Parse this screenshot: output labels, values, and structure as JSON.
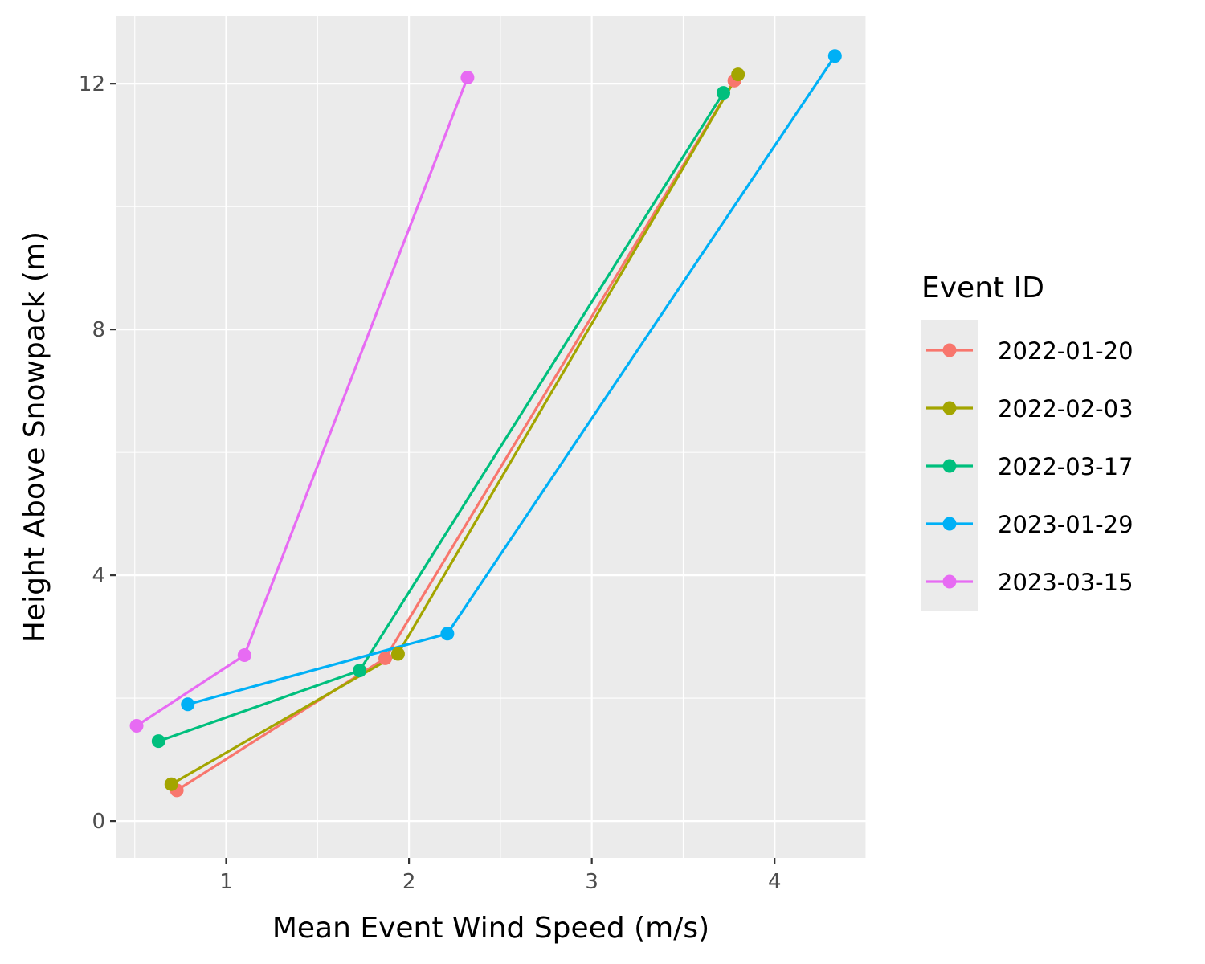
{
  "chart_data": {
    "type": "line",
    "xlabel": "Mean Event Wind Speed (m/s)",
    "ylabel": "Height Above Snowpack (m)",
    "xlim": [
      0.4,
      4.5
    ],
    "ylim": [
      -0.6,
      13.1
    ],
    "x_ticks": [
      1,
      2,
      3,
      4
    ],
    "x_tick_labels": [
      "1",
      "2",
      "3",
      "4"
    ],
    "y_ticks": [
      0,
      4,
      8,
      12
    ],
    "y_tick_labels": [
      "0",
      "4",
      "8",
      "12"
    ],
    "grid": true,
    "background": "#EBEBEB",
    "legend": {
      "title": "Event ID",
      "position": "right"
    },
    "series": [
      {
        "name": "2022-01-20",
        "color": "#F8766D",
        "x": [
          0.73,
          1.87,
          3.78
        ],
        "y": [
          0.5,
          2.65,
          12.05
        ]
      },
      {
        "name": "2022-02-03",
        "color": "#A3A500",
        "x": [
          0.7,
          1.94,
          3.8
        ],
        "y": [
          0.6,
          2.72,
          12.15
        ]
      },
      {
        "name": "2022-03-17",
        "color": "#00BF7D",
        "x": [
          0.63,
          1.73,
          3.72
        ],
        "y": [
          1.3,
          2.45,
          11.85
        ]
      },
      {
        "name": "2023-01-29",
        "color": "#00B0F6",
        "x": [
          0.79,
          2.21,
          4.33
        ],
        "y": [
          1.9,
          3.05,
          12.45
        ]
      },
      {
        "name": "2023-03-15",
        "color": "#E76BF3",
        "x": [
          0.51,
          1.1,
          2.32
        ],
        "y": [
          1.55,
          2.7,
          12.1
        ]
      }
    ]
  }
}
